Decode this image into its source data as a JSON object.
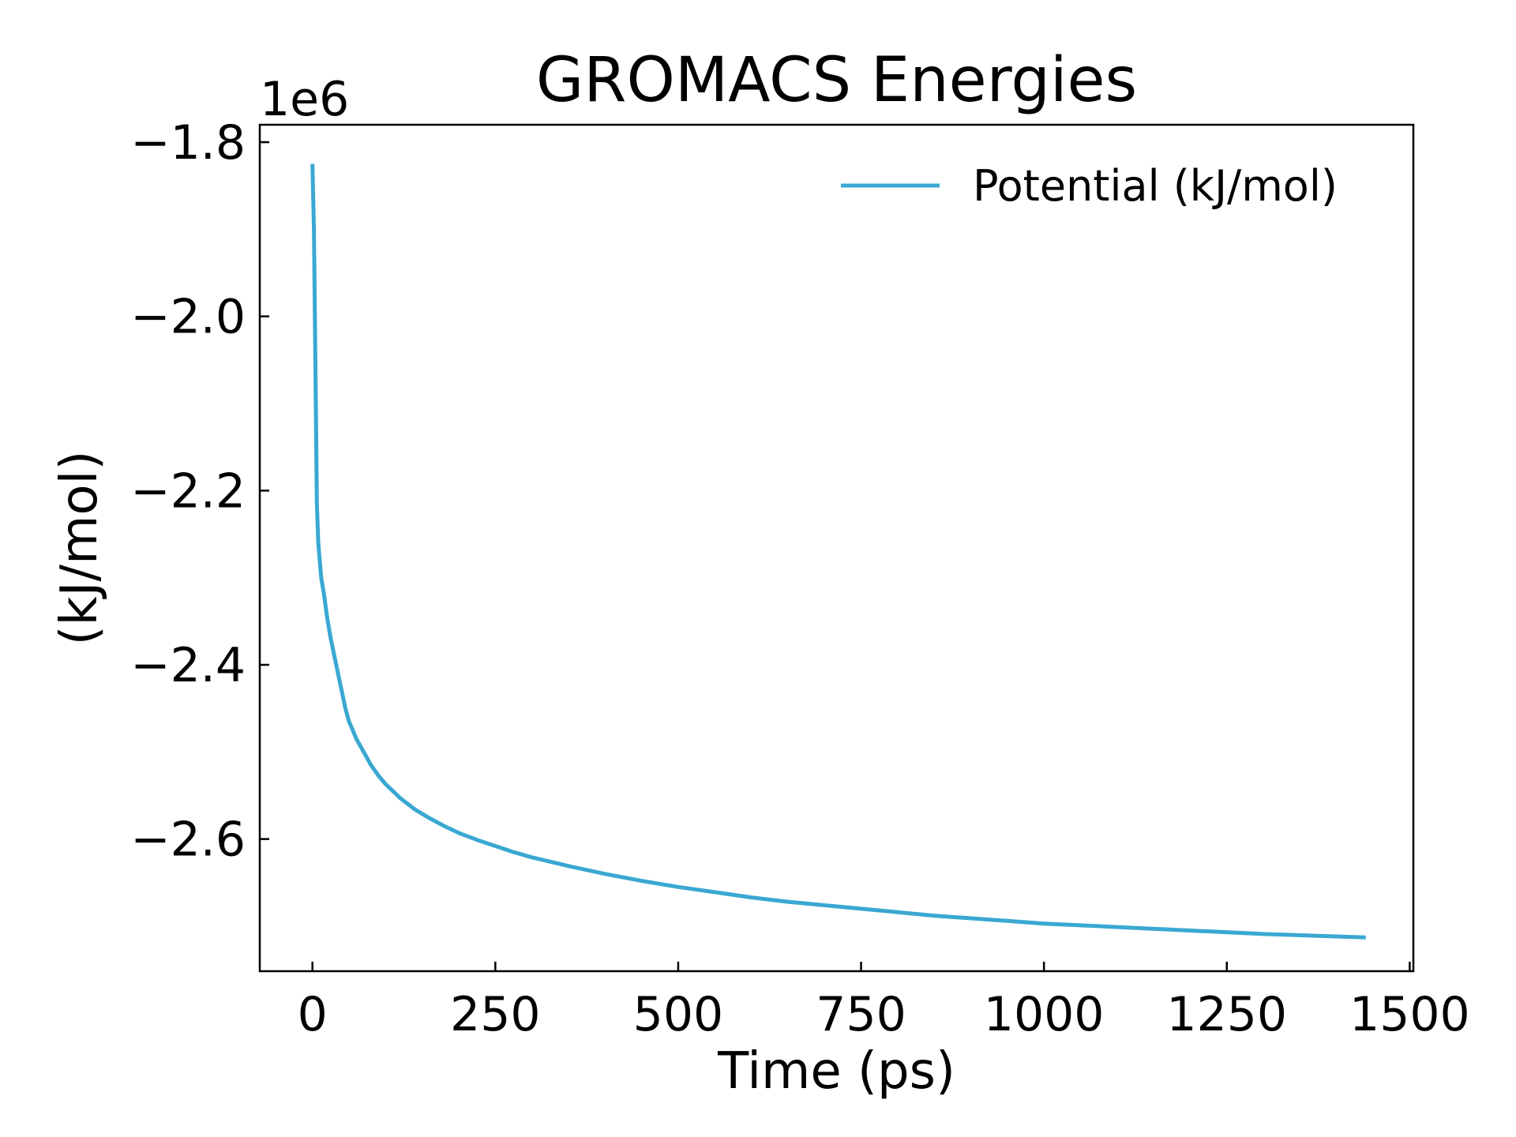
{
  "chart_data": {
    "type": "line",
    "title": "GROMACS Energies",
    "xlabel": "Time (ps)",
    "ylabel": "(kJ/mol)",
    "y_offset_label": "1e6",
    "xlim": [
      -72,
      1505
    ],
    "ylim": [
      -2.7517,
      -1.78
    ],
    "x_ticks": [
      0,
      250,
      500,
      750,
      1000,
      1250,
      1500
    ],
    "x_tick_labels": [
      "0",
      "250",
      "500",
      "750",
      "1000",
      "1250",
      "1500"
    ],
    "y_ticks": [
      -1.8,
      -2.0,
      -2.2,
      -2.4,
      -2.6
    ],
    "y_tick_labels": [
      "−1.8",
      "−2.0",
      "−2.2",
      "−2.4",
      "−2.6"
    ],
    "grid": false,
    "legend_position": "upper right",
    "series": [
      {
        "name": "Potential (kJ/mol)",
        "color": "#3aa8d2",
        "x": [
          0,
          2,
          4,
          6,
          8,
          12,
          16,
          20,
          25,
          30,
          35,
          40,
          45,
          50,
          55,
          60,
          70,
          80,
          90,
          100,
          120,
          140,
          160,
          180,
          200,
          225,
          250,
          275,
          300,
          350,
          400,
          450,
          500,
          550,
          600,
          650,
          700,
          750,
          800,
          850,
          900,
          950,
          1000,
          1100,
          1200,
          1300,
          1440
        ],
        "values": [
          -1.825,
          -1.9,
          -2.05,
          -2.215,
          -2.26,
          -2.3,
          -2.32,
          -2.345,
          -2.37,
          -2.39,
          -2.41,
          -2.43,
          -2.45,
          -2.465,
          -2.475,
          -2.485,
          -2.5,
          -2.515,
          -2.527,
          -2.537,
          -2.553,
          -2.566,
          -2.576,
          -2.585,
          -2.593,
          -2.601,
          -2.608,
          -2.615,
          -2.621,
          -2.631,
          -2.64,
          -2.648,
          -2.655,
          -2.661,
          -2.667,
          -2.672,
          -2.676,
          -2.68,
          -2.684,
          -2.688,
          -2.691,
          -2.694,
          -2.697,
          -2.701,
          -2.705,
          -2.709,
          -2.713
        ]
      }
    ]
  }
}
